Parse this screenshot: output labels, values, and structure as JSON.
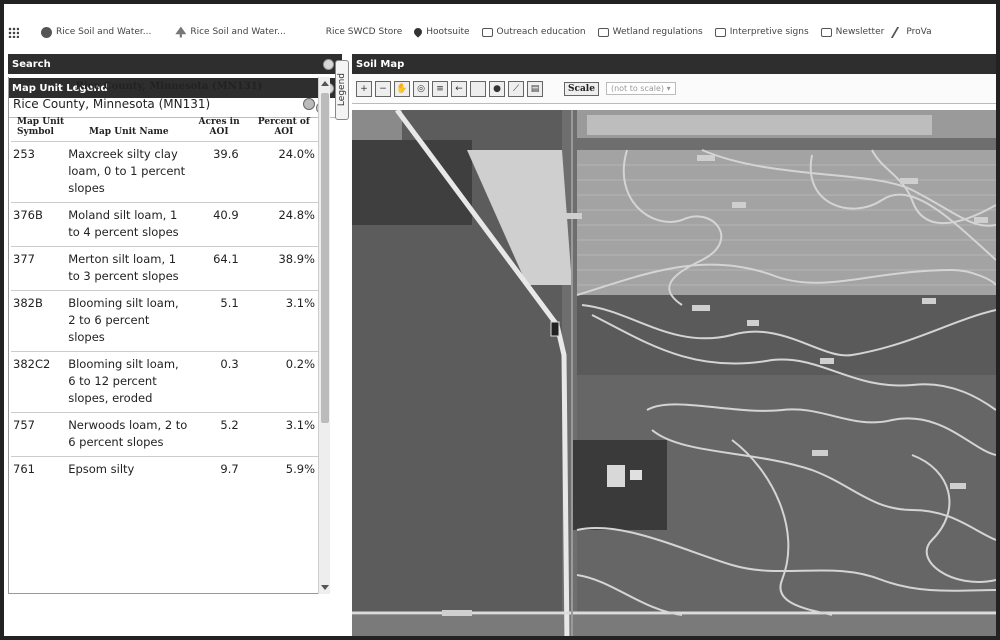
{
  "bookmarks": [
    {
      "label": "Rice Soil and Water...",
      "icon": "globe-icon"
    },
    {
      "label": "Rice Soil and Water...",
      "icon": "tree-icon"
    },
    {
      "label": "Rice SWCD Store",
      "icon": "none"
    },
    {
      "label": "Hootsuite",
      "icon": "owl-icon"
    },
    {
      "label": "Outreach education",
      "icon": "folder-icon"
    },
    {
      "label": "Wetland regulations",
      "icon": "folder-icon"
    },
    {
      "label": "Interpretive signs",
      "icon": "folder-icon"
    },
    {
      "label": "Newsletter",
      "icon": "folder-icon"
    },
    {
      "label": "ProVa",
      "icon": "pen-icon"
    }
  ],
  "panels": {
    "search_title": "Search",
    "legend_title": "Map Unit Legend",
    "map_title": "Soil Map",
    "legend_tab": "Legend"
  },
  "legend": {
    "county_title": "Rice County, Minnesota (MN131)",
    "county_subtitle": "Rice County, Minnesota (MN131)",
    "headers": {
      "symbol": "Map Unit Symbol",
      "name": "Map Unit Name",
      "acres": "Acres in AOI",
      "percent": "Percent of AOI"
    },
    "rows": [
      {
        "symbol": "253",
        "name": "Maxcreek silty clay loam, 0 to 1 percent slopes",
        "acres": "39.6",
        "percent": "24.0%"
      },
      {
        "symbol": "376B",
        "name": "Moland silt loam, 1 to 4 percent slopes",
        "acres": "40.9",
        "percent": "24.8%"
      },
      {
        "symbol": "377",
        "name": "Merton silt loam, 1 to 3 percent slopes",
        "acres": "64.1",
        "percent": "38.9%"
      },
      {
        "symbol": "382B",
        "name": "Blooming silt loam, 2 to 6 percent slopes",
        "acres": "5.1",
        "percent": "3.1%"
      },
      {
        "symbol": "382C2",
        "name": "Blooming silt loam, 6 to 12 percent slopes, eroded",
        "acres": "0.3",
        "percent": "0.2%"
      },
      {
        "symbol": "757",
        "name": "Nerwoods loam, 2 to 6 percent slopes",
        "acres": "5.2",
        "percent": "3.1%"
      },
      {
        "symbol": "761",
        "name": "Epsom silty",
        "acres": "9.7",
        "percent": "5.9%"
      }
    ]
  },
  "map_toolbar": {
    "scale_label": "Scale",
    "scale_value": "(not to scale)"
  },
  "colors": {
    "header_bar": "#2e2e2e",
    "soil_lines": "#d4d4d4"
  }
}
